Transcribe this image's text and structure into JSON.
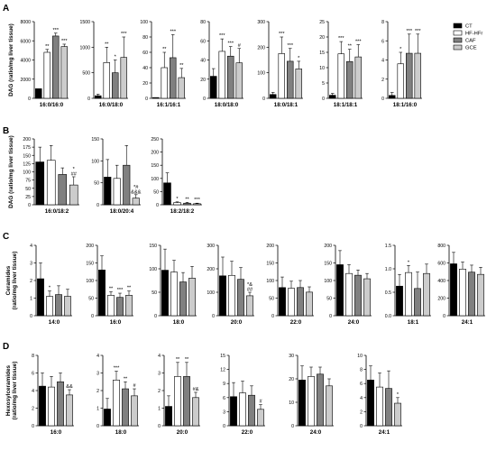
{
  "colors": {
    "CT": "#000000",
    "HF-HFr": "#ffffff",
    "CAF": "#808080",
    "GCE": "#cccccc",
    "axis": "#000000"
  },
  "legend": [
    {
      "name": "CT",
      "color": "#000000"
    },
    {
      "name": "HF-HFr",
      "color": "#ffffff"
    },
    {
      "name": "CAF",
      "color": "#808080"
    },
    {
      "name": "GCE",
      "color": "#cccccc"
    }
  ],
  "chart_data": [
    {
      "type": "bar",
      "panel": "A",
      "ylabel": "DAG (ratio/mg liver tissue)",
      "xlabel": "16:0/16:0",
      "ylim": [
        0,
        8000
      ],
      "yticks": [
        0,
        2000,
        4000,
        6000,
        8000
      ],
      "series": [
        {
          "name": "CT",
          "value": 1000,
          "err": 0
        },
        {
          "name": "HF-HFr",
          "value": 4800,
          "err": 300
        },
        {
          "name": "CAF",
          "value": 6500,
          "err": 300
        },
        {
          "name": "GCE",
          "value": 5400,
          "err": 250
        }
      ],
      "annotations": [
        "",
        "**",
        "***",
        "***"
      ]
    },
    {
      "type": "bar",
      "panel": "A",
      "xlabel": "16:0/18:0",
      "ylim": [
        0,
        1500
      ],
      "yticks": [
        0,
        500,
        1000,
        1500
      ],
      "series": [
        {
          "name": "CT",
          "value": 50,
          "err": 30
        },
        {
          "name": "HF-HFr",
          "value": 700,
          "err": 300
        },
        {
          "name": "CAF",
          "value": 500,
          "err": 250
        },
        {
          "name": "GCE",
          "value": 800,
          "err": 400
        }
      ],
      "annotations": [
        "",
        "**",
        "*",
        "***"
      ]
    },
    {
      "type": "bar",
      "panel": "A",
      "xlabel": "16:1/16:1",
      "ylim": [
        0,
        100
      ],
      "yticks": [
        0,
        20,
        40,
        60,
        80,
        100
      ],
      "series": [
        {
          "name": "CT",
          "value": 1,
          "err": 0
        },
        {
          "name": "HF-HFr",
          "value": 40,
          "err": 20
        },
        {
          "name": "CAF",
          "value": 53,
          "err": 30
        },
        {
          "name": "GCE",
          "value": 27,
          "err": 12
        }
      ],
      "annotations": [
        "",
        "**",
        "***",
        "**"
      ]
    },
    {
      "type": "bar",
      "panel": "A",
      "xlabel": "18:0/18:0",
      "ylim": [
        0,
        80
      ],
      "yticks": [
        0,
        20,
        40,
        60,
        80
      ],
      "series": [
        {
          "name": "CT",
          "value": 23,
          "err": 8
        },
        {
          "name": "HF-HFr",
          "value": 49,
          "err": 13
        },
        {
          "name": "CAF",
          "value": 44,
          "err": 10
        },
        {
          "name": "GCE",
          "value": 37,
          "err": 15
        }
      ],
      "annotations": [
        "",
        "***",
        "***",
        "#"
      ]
    },
    {
      "type": "bar",
      "panel": "A",
      "xlabel": "18:0/18:1",
      "ylim": [
        0,
        300
      ],
      "yticks": [
        0,
        100,
        200,
        300
      ],
      "series": [
        {
          "name": "CT",
          "value": 15,
          "err": 8
        },
        {
          "name": "HF-HFr",
          "value": 175,
          "err": 65
        },
        {
          "name": "CAF",
          "value": 145,
          "err": 50
        },
        {
          "name": "GCE",
          "value": 115,
          "err": 30
        }
      ],
      "annotations": [
        "",
        "***",
        "***",
        "*"
      ]
    },
    {
      "type": "bar",
      "panel": "A",
      "xlabel": "18:1/18:1",
      "ylim": [
        0,
        25
      ],
      "yticks": [
        0,
        5,
        10,
        15,
        20,
        25
      ],
      "series": [
        {
          "name": "CT",
          "value": 1,
          "err": 0.6
        },
        {
          "name": "HF-HFr",
          "value": 14.5,
          "err": 4
        },
        {
          "name": "CAF",
          "value": 12,
          "err": 4
        },
        {
          "name": "GCE",
          "value": 13.5,
          "err": 4
        }
      ],
      "annotations": [
        "",
        "***",
        "**",
        "***"
      ]
    },
    {
      "type": "bar",
      "panel": "A",
      "xlabel": "18:1/16:0",
      "ylim": [
        0,
        8
      ],
      "yticks": [
        0,
        2,
        4,
        6,
        8
      ],
      "series": [
        {
          "name": "CT",
          "value": 0.3,
          "err": 0.3
        },
        {
          "name": "HF-HFr",
          "value": 3.6,
          "err": 1.2
        },
        {
          "name": "CAF",
          "value": 4.7,
          "err": 2
        },
        {
          "name": "GCE",
          "value": 4.7,
          "err": 2
        }
      ],
      "annotations": [
        "",
        "*",
        "***",
        "***"
      ]
    },
    {
      "type": "bar",
      "panel": "B",
      "ylabel": "DAG (ratio/mg liver tissue)",
      "xlabel": "16:0/18:2",
      "ylim": [
        0,
        200
      ],
      "yticks": [
        0,
        25,
        50,
        75,
        100,
        125,
        150,
        175,
        200
      ],
      "series": [
        {
          "name": "CT",
          "value": 130,
          "err": 45
        },
        {
          "name": "HF-HFr",
          "value": 135,
          "err": 45
        },
        {
          "name": "CAF",
          "value": 92,
          "err": 20
        },
        {
          "name": "GCE",
          "value": 60,
          "err": 25
        }
      ],
      "annotations": [
        "",
        "",
        "",
        "*\n##"
      ]
    },
    {
      "type": "bar",
      "panel": "B",
      "xlabel": "18:0/20:4",
      "ylim": [
        0,
        150
      ],
      "yticks": [
        0,
        50,
        100,
        150
      ],
      "series": [
        {
          "name": "CT",
          "value": 63,
          "err": 40
        },
        {
          "name": "HF-HFr",
          "value": 60,
          "err": 30
        },
        {
          "name": "CAF",
          "value": 90,
          "err": 45
        },
        {
          "name": "GCE",
          "value": 15,
          "err": 8
        }
      ],
      "annotations": [
        "",
        "",
        "",
        "*#\n&&&"
      ]
    },
    {
      "type": "bar",
      "panel": "B",
      "xlabel": "18:2/18:2",
      "ylim": [
        0,
        250
      ],
      "yticks": [
        0,
        50,
        100,
        150,
        200,
        250
      ],
      "series": [
        {
          "name": "CT",
          "value": 83,
          "err": 38
        },
        {
          "name": "HF-HFr",
          "value": 8,
          "err": 3
        },
        {
          "name": "CAF",
          "value": 6,
          "err": 3
        },
        {
          "name": "GCE",
          "value": 4,
          "err": 2
        }
      ],
      "annotations": [
        "",
        "*",
        "**",
        "***"
      ]
    },
    {
      "type": "bar",
      "panel": "C",
      "ylabel": "Ceramides (ratio/mg liver tissue)",
      "xlabel": "14:0",
      "ylim": [
        0,
        4
      ],
      "yticks": [
        0,
        1,
        2,
        3,
        4
      ],
      "series": [
        {
          "name": "CT",
          "value": 2.1,
          "err": 0.9
        },
        {
          "name": "HF-HFr",
          "value": 1.1,
          "err": 0.3
        },
        {
          "name": "CAF",
          "value": 1.2,
          "err": 0.5
        },
        {
          "name": "GCE",
          "value": 1.1,
          "err": 0.4
        }
      ],
      "annotations": [
        "",
        "*",
        "",
        ""
      ]
    },
    {
      "type": "bar",
      "panel": "C",
      "xlabel": "16:0",
      "ylim": [
        0,
        200
      ],
      "yticks": [
        0,
        50,
        100,
        150,
        200
      ],
      "series": [
        {
          "name": "CT",
          "value": 130,
          "err": 40
        },
        {
          "name": "HF-HFr",
          "value": 58,
          "err": 10
        },
        {
          "name": "CAF",
          "value": 52,
          "err": 12
        },
        {
          "name": "GCE",
          "value": 58,
          "err": 12
        }
      ],
      "annotations": [
        "",
        "**",
        "***",
        "**"
      ]
    },
    {
      "type": "bar",
      "panel": "C",
      "xlabel": "18:0",
      "ylim": [
        0,
        150
      ],
      "yticks": [
        0,
        50,
        100,
        150
      ],
      "series": [
        {
          "name": "CT",
          "value": 97,
          "err": 45
        },
        {
          "name": "HF-HFr",
          "value": 93,
          "err": 25
        },
        {
          "name": "CAF",
          "value": 72,
          "err": 20
        },
        {
          "name": "GCE",
          "value": 80,
          "err": 25
        }
      ],
      "annotations": [
        "",
        "",
        "",
        ""
      ]
    },
    {
      "type": "bar",
      "panel": "C",
      "xlabel": "20:0",
      "ylim": [
        0,
        300
      ],
      "yticks": [
        0,
        100,
        200,
        300
      ],
      "series": [
        {
          "name": "CT",
          "value": 170,
          "err": 80
        },
        {
          "name": "HF-HFr",
          "value": 172,
          "err": 60
        },
        {
          "name": "CAF",
          "value": 155,
          "err": 50
        },
        {
          "name": "GCE",
          "value": 85,
          "err": 15
        }
      ],
      "annotations": [
        "",
        "",
        "",
        "*&\n##"
      ]
    },
    {
      "type": "bar",
      "panel": "C",
      "xlabel": "22:0",
      "ylim": [
        0,
        200
      ],
      "yticks": [
        0,
        50,
        100,
        150,
        200
      ],
      "series": [
        {
          "name": "CT",
          "value": 80,
          "err": 30
        },
        {
          "name": "HF-HFr",
          "value": 78,
          "err": 20
        },
        {
          "name": "CAF",
          "value": 80,
          "err": 20
        },
        {
          "name": "GCE",
          "value": 67,
          "err": 15
        }
      ],
      "annotations": [
        "",
        "",
        "",
        ""
      ]
    },
    {
      "type": "bar",
      "panel": "C",
      "xlabel": "24:0",
      "ylim": [
        0,
        200
      ],
      "yticks": [
        0,
        50,
        100,
        150,
        200
      ],
      "series": [
        {
          "name": "CT",
          "value": 145,
          "err": 40
        },
        {
          "name": "HF-HFr",
          "value": 120,
          "err": 25
        },
        {
          "name": "CAF",
          "value": 115,
          "err": 15
        },
        {
          "name": "GCE",
          "value": 105,
          "err": 15
        }
      ],
      "annotations": [
        "",
        "",
        "",
        ""
      ]
    },
    {
      "type": "bar",
      "panel": "C",
      "xlabel": "18:1",
      "ylim": [
        0,
        1.5
      ],
      "yticks": [
        0.0,
        0.5,
        1.0,
        1.5
      ],
      "series": [
        {
          "name": "CT",
          "value": 0.63,
          "err": 0.25
        },
        {
          "name": "HF-HFr",
          "value": 0.92,
          "err": 0.15
        },
        {
          "name": "CAF",
          "value": 0.58,
          "err": 0.35
        },
        {
          "name": "GCE",
          "value": 0.9,
          "err": 0.2
        }
      ],
      "annotations": [
        "",
        "*",
        "",
        ""
      ]
    },
    {
      "type": "bar",
      "panel": "C",
      "xlabel": "24:1",
      "ylim": [
        0,
        800
      ],
      "yticks": [
        0,
        200,
        400,
        600,
        800
      ],
      "series": [
        {
          "name": "CT",
          "value": 590,
          "err": 130
        },
        {
          "name": "HF-HFr",
          "value": 530,
          "err": 80
        },
        {
          "name": "CAF",
          "value": 495,
          "err": 80
        },
        {
          "name": "GCE",
          "value": 470,
          "err": 80
        }
      ],
      "annotations": [
        "",
        "",
        "",
        ""
      ]
    },
    {
      "type": "bar",
      "panel": "D",
      "ylabel": "Hexosylceramides (ratio/mg liver tissue)",
      "xlabel": "16:0",
      "ylim": [
        0,
        8
      ],
      "yticks": [
        0,
        2,
        4,
        6,
        8
      ],
      "series": [
        {
          "name": "CT",
          "value": 4.5,
          "err": 1.5
        },
        {
          "name": "HF-HFr",
          "value": 4.4,
          "err": 1.2
        },
        {
          "name": "CAF",
          "value": 5,
          "err": 1
        },
        {
          "name": "GCE",
          "value": 3.5,
          "err": 0.6
        }
      ],
      "annotations": [
        "",
        "",
        "",
        "&&"
      ]
    },
    {
      "type": "bar",
      "panel": "D",
      "xlabel": "18:0",
      "ylim": [
        0,
        4
      ],
      "yticks": [
        0,
        1,
        2,
        3,
        4
      ],
      "series": [
        {
          "name": "CT",
          "value": 0.95,
          "err": 0.6
        },
        {
          "name": "HF-HFr",
          "value": 2.6,
          "err": 0.5
        },
        {
          "name": "CAF",
          "value": 2.1,
          "err": 0.4
        },
        {
          "name": "GCE",
          "value": 1.7,
          "err": 0.4
        }
      ],
      "annotations": [
        "",
        "***",
        "**",
        "#"
      ]
    },
    {
      "type": "bar",
      "panel": "D",
      "xlabel": "20:0",
      "ylim": [
        0,
        4
      ],
      "yticks": [
        0,
        1,
        2,
        3,
        4
      ],
      "series": [
        {
          "name": "CT",
          "value": 1.1,
          "err": 0.6
        },
        {
          "name": "HF-HFr",
          "value": 2.8,
          "err": 0.8
        },
        {
          "name": "CAF",
          "value": 2.8,
          "err": 0.8
        },
        {
          "name": "GCE",
          "value": 1.6,
          "err": 0.3
        }
      ],
      "annotations": [
        "",
        "**",
        "**",
        "#&"
      ]
    },
    {
      "type": "bar",
      "panel": "D",
      "xlabel": "22:0",
      "ylim": [
        0,
        15
      ],
      "yticks": [
        0,
        3,
        6,
        9,
        12,
        15
      ],
      "series": [
        {
          "name": "CT",
          "value": 6.2,
          "err": 3
        },
        {
          "name": "HF-HFr",
          "value": 7,
          "err": 2.5
        },
        {
          "name": "CAF",
          "value": 6.5,
          "err": 2
        },
        {
          "name": "GCE",
          "value": 3.5,
          "err": 1
        }
      ],
      "annotations": [
        "",
        "",
        "",
        "#"
      ]
    },
    {
      "type": "bar",
      "panel": "D",
      "xlabel": "24:0",
      "ylim": [
        0,
        30
      ],
      "yticks": [
        0,
        10,
        20,
        30
      ],
      "series": [
        {
          "name": "CT",
          "value": 19.5,
          "err": 6
        },
        {
          "name": "HF-HFr",
          "value": 21,
          "err": 4
        },
        {
          "name": "CAF",
          "value": 22,
          "err": 3
        },
        {
          "name": "GCE",
          "value": 17,
          "err": 3
        }
      ],
      "annotations": [
        "",
        "",
        "",
        ""
      ]
    },
    {
      "type": "bar",
      "panel": "D",
      "xlabel": "24:1",
      "ylim": [
        0,
        10
      ],
      "yticks": [
        0,
        2,
        4,
        6,
        8,
        10
      ],
      "series": [
        {
          "name": "CT",
          "value": 6.5,
          "err": 2
        },
        {
          "name": "HF-HFr",
          "value": 5.5,
          "err": 2
        },
        {
          "name": "CAF",
          "value": 5.3,
          "err": 2.5
        },
        {
          "name": "GCE",
          "value": 3.2,
          "err": 0.8
        }
      ],
      "annotations": [
        "",
        "",
        "",
        "*"
      ]
    }
  ]
}
